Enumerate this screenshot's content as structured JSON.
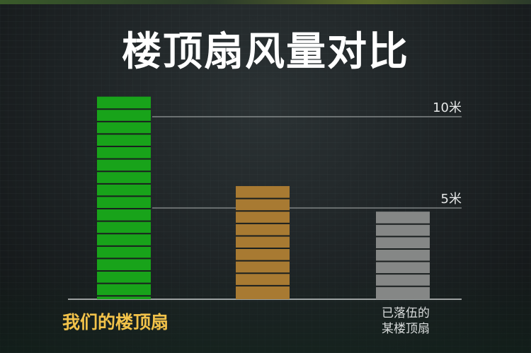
{
  "title": "楼顶扇风量对比",
  "chart_data": {
    "type": "bar",
    "categories": [
      "我们的楼顶扇",
      "",
      "已落伍的\n某楼顶扇"
    ],
    "values": [
      11.1,
      6.2,
      4.8
    ],
    "colors": [
      "#18a31a",
      "#a87a32",
      "#858786"
    ],
    "category_label_colors": [
      "#f2c24a",
      "#d9dcdc",
      "#d9dcdc"
    ],
    "gridlines": [
      {
        "value": 10,
        "label": "10米"
      },
      {
        "value": 5,
        "label": "5米"
      }
    ],
    "ylim": [
      0,
      11.1
    ],
    "grid": "reference lines at 5 and 10",
    "legend": "none"
  }
}
